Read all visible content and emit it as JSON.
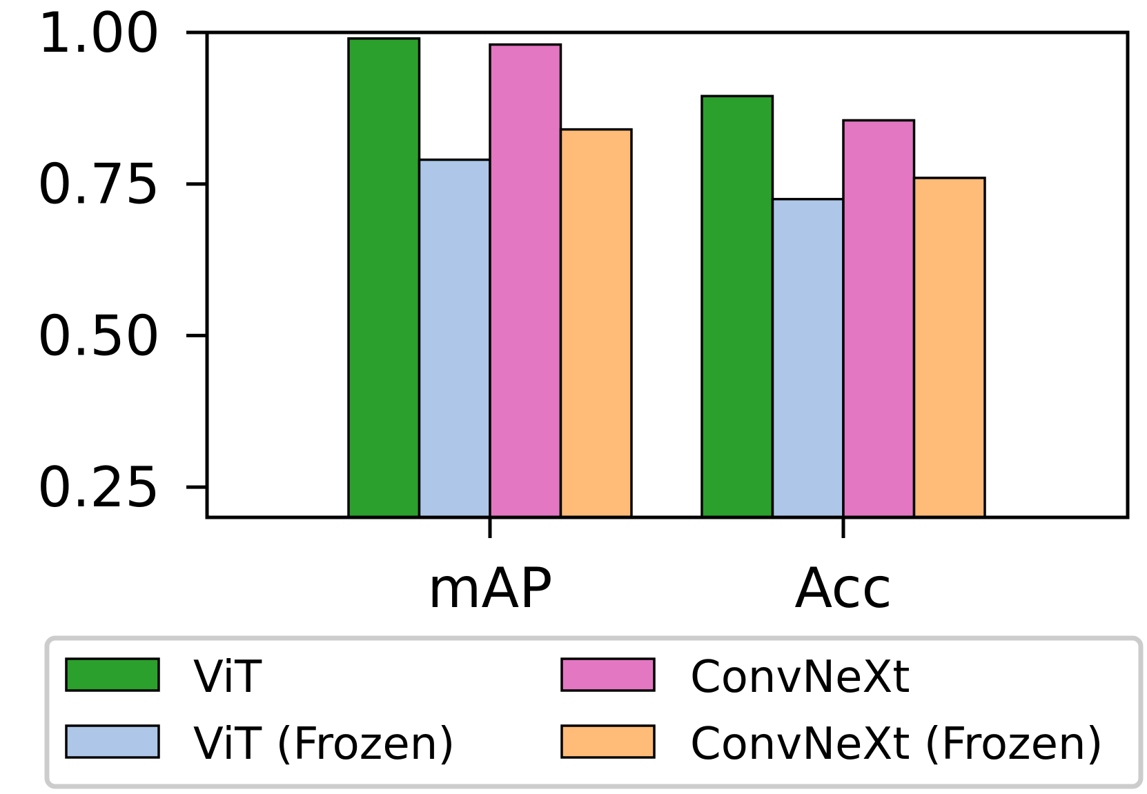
{
  "chart_data": {
    "type": "bar",
    "title": "",
    "xlabel": "",
    "ylabel": "",
    "categories": [
      "mAP",
      "Acc"
    ],
    "ylim": [
      0.2,
      1.0
    ],
    "yticks": [
      0.25,
      0.5,
      0.75,
      1.0
    ],
    "ytick_labels": [
      "0.25",
      "0.50",
      "0.75",
      "1.00"
    ],
    "grid": false,
    "legend_position": "bottom",
    "series": [
      {
        "name": "ViT",
        "color": "#2ca02c",
        "values": [
          0.99,
          0.895
        ]
      },
      {
        "name": "ViT (Frozen)",
        "color": "#aec7e8",
        "values": [
          0.79,
          0.725
        ]
      },
      {
        "name": "ConvNeXt",
        "color": "#e377c2",
        "values": [
          0.98,
          0.855
        ]
      },
      {
        "name": "ConvNeXt (Frozen)",
        "color": "#ffbb78",
        "values": [
          0.84,
          0.76
        ]
      }
    ]
  }
}
